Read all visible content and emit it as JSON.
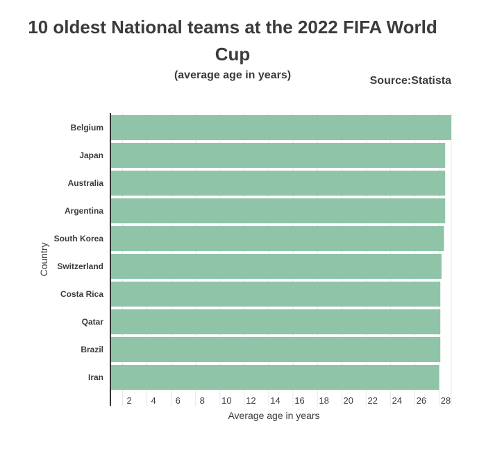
{
  "title": "10 oldest National teams at the 2022 FIFA World Cup",
  "subtitle": "(average age in years)",
  "source": "Source:Statista",
  "chart_data": {
    "type": "bar",
    "orientation": "horizontal",
    "categories": [
      "Belgium",
      "Japan",
      "Australia",
      "Argentina",
      "South Korea",
      "Switzerland",
      "Costa Rica",
      "Qatar",
      "Brazil",
      "Iran"
    ],
    "values": [
      28.0,
      27.5,
      27.5,
      27.5,
      27.4,
      27.2,
      27.1,
      27.1,
      27.1,
      27.0
    ],
    "xlabel": "Average age in years",
    "ylabel": "Country",
    "xlim": [
      0,
      28
    ],
    "xticks": [
      2,
      4,
      6,
      8,
      10,
      12,
      14,
      16,
      18,
      20,
      22,
      24,
      26,
      28
    ],
    "grid": true,
    "bar_color": "#8fc4a9"
  }
}
